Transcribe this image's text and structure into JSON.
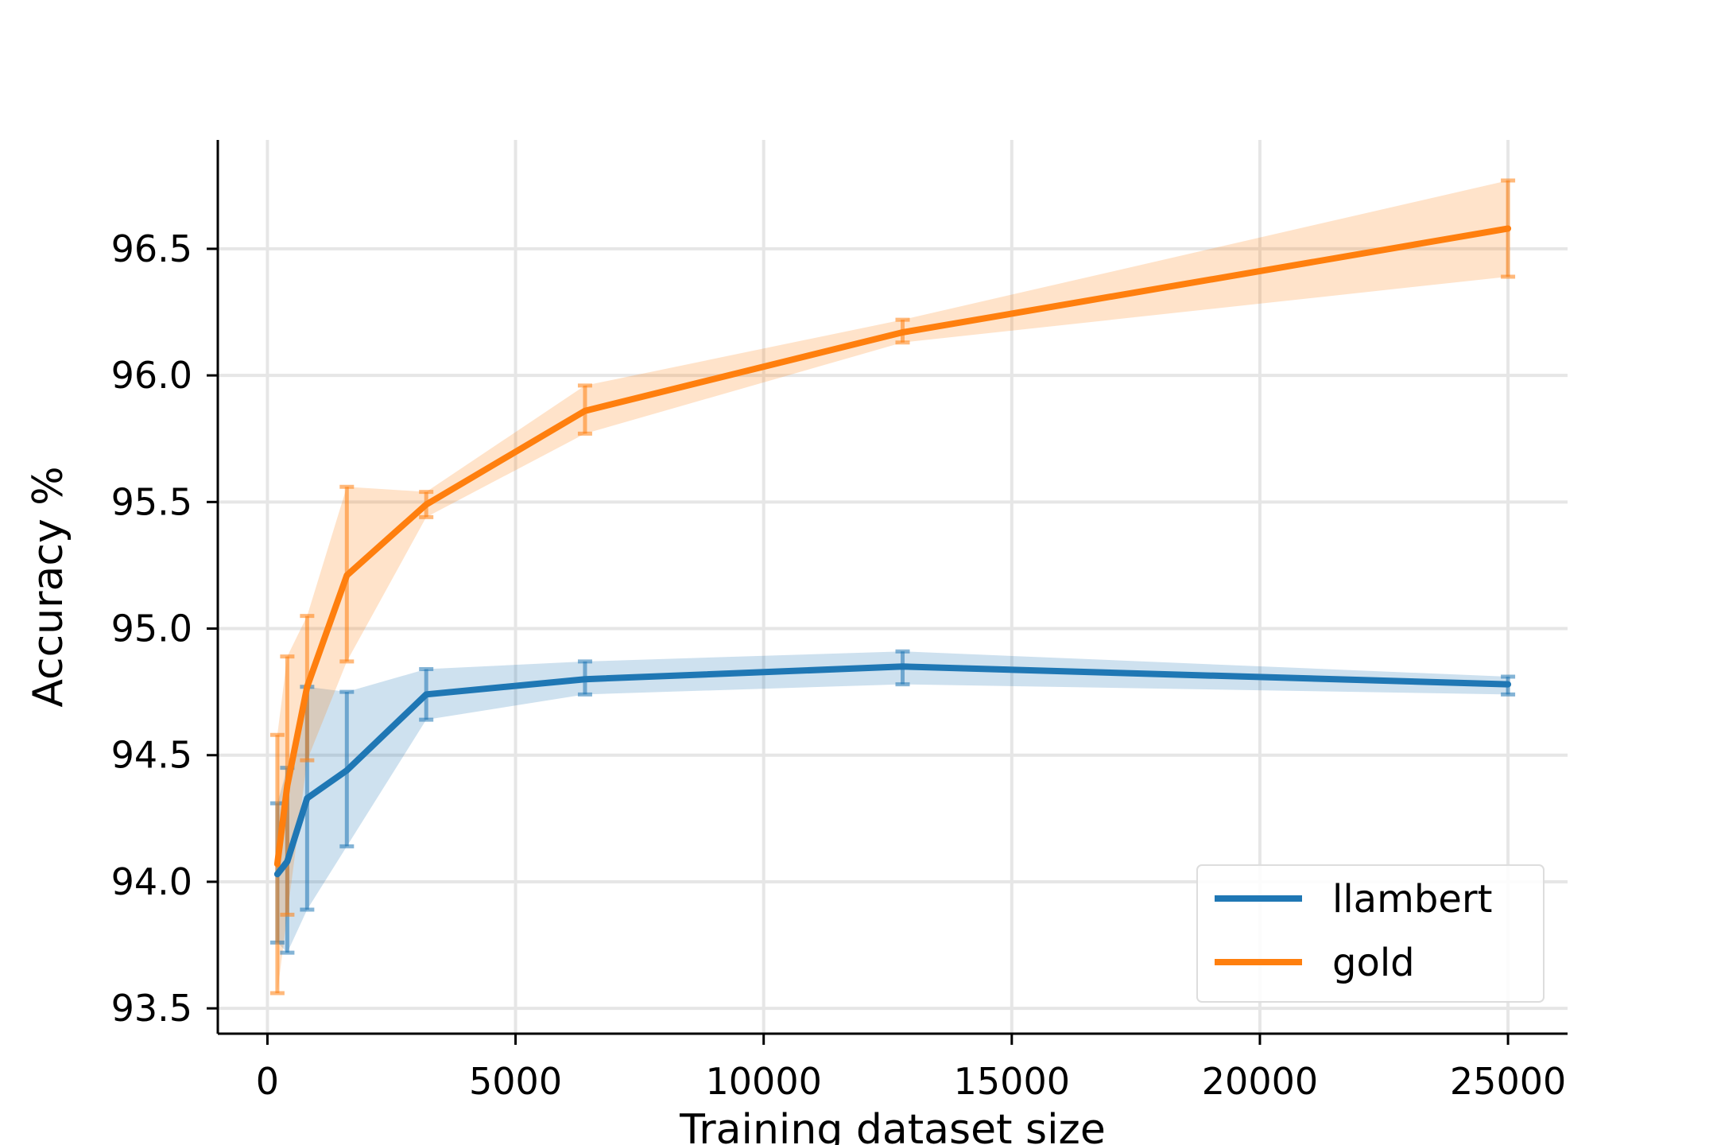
{
  "chart_data": {
    "type": "line",
    "title": "",
    "xlabel": "Training dataset size",
    "ylabel": "Accuracy %",
    "xlim": [
      -1000,
      26200
    ],
    "ylim": [
      93.4,
      96.93
    ],
    "xticks": [
      0,
      5000,
      10000,
      15000,
      20000,
      25000
    ],
    "xtick_labels": [
      "0",
      "5000",
      "10000",
      "15000",
      "20000",
      "25000"
    ],
    "yticks": [
      93.5,
      94.0,
      94.5,
      95.0,
      95.5,
      96.0,
      96.5
    ],
    "ytick_labels": [
      "93.5",
      "94.0",
      "94.5",
      "95.0",
      "95.5",
      "96.0",
      "96.5"
    ],
    "grid": true,
    "legend_position": "lower-right",
    "x": [
      200,
      400,
      800,
      1600,
      3200,
      6400,
      12800,
      25000
    ],
    "series": [
      {
        "name": "llambert",
        "color": "#1f77b4",
        "values": [
          94.03,
          94.08,
          94.33,
          94.44,
          94.74,
          94.8,
          94.85,
          94.78
        ],
        "lower": [
          93.76,
          93.72,
          93.89,
          94.14,
          94.64,
          94.74,
          94.78,
          94.74
        ],
        "upper": [
          94.31,
          94.45,
          94.77,
          94.75,
          94.84,
          94.87,
          94.91,
          94.81
        ]
      },
      {
        "name": "gold",
        "color": "#ff7f0e",
        "values": [
          94.07,
          94.38,
          94.77,
          95.21,
          95.49,
          95.86,
          96.17,
          96.58
        ],
        "lower": [
          93.56,
          93.87,
          94.48,
          94.87,
          95.44,
          95.77,
          96.13,
          96.39
        ],
        "upper": [
          94.58,
          94.89,
          95.05,
          95.56,
          95.54,
          95.96,
          96.22,
          96.77
        ]
      }
    ]
  }
}
